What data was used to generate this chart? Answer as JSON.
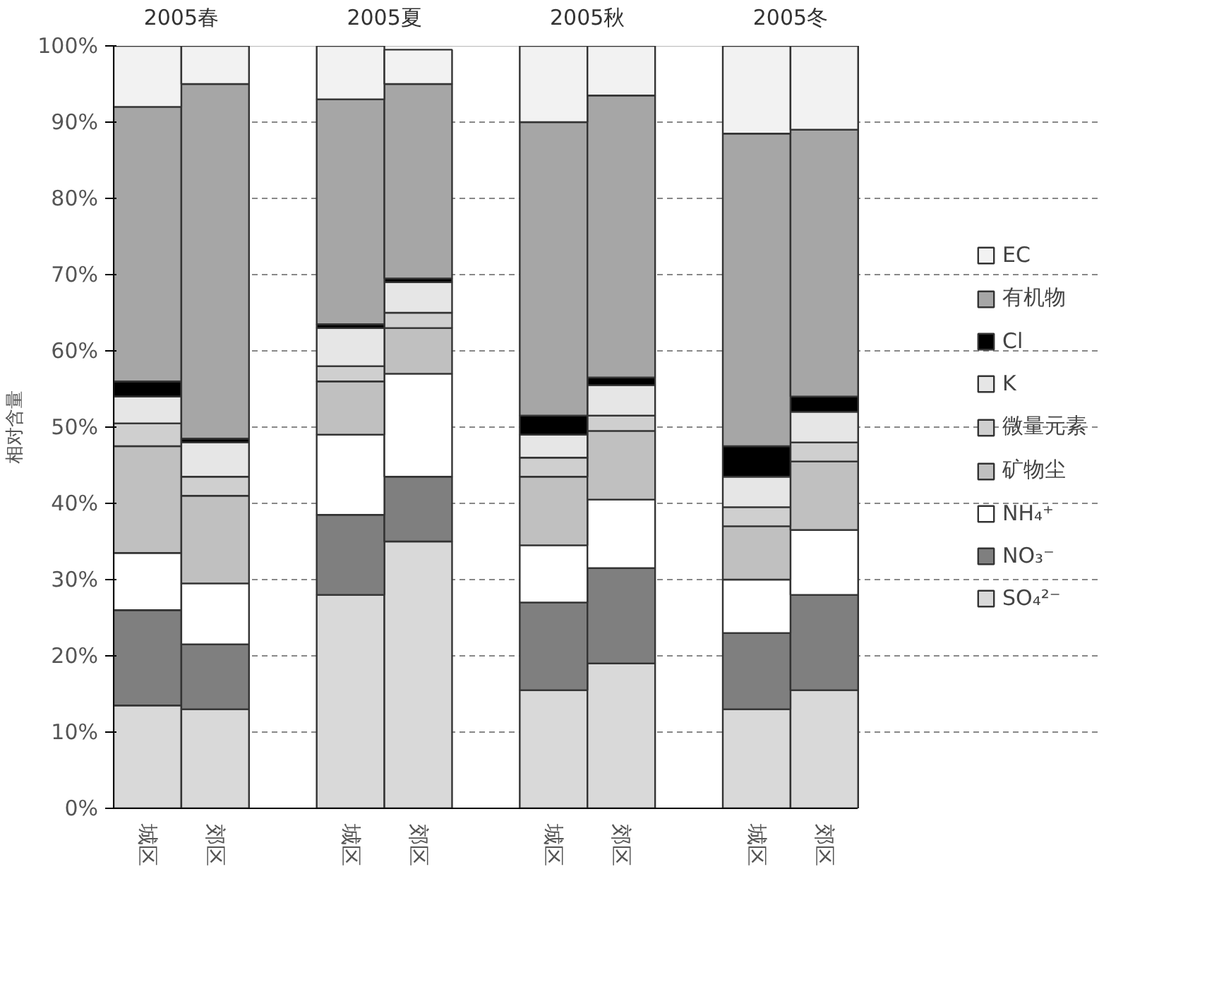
{
  "chart_data": {
    "type": "bar",
    "stacked": true,
    "ylabel": "相对含量",
    "categories": [
      "城区",
      "郊区",
      "城区",
      "郊区",
      "城区",
      "郊区",
      "城区",
      "郊区"
    ],
    "annotations": [
      "2005春",
      "2005夏",
      "2005秋",
      "2005冬"
    ],
    "ylim": [
      0,
      100
    ],
    "yticks": [
      {
        "value": 0,
        "label": "0%"
      },
      {
        "value": 10,
        "label": "10%"
      },
      {
        "value": 20,
        "label": "20%"
      },
      {
        "value": 30,
        "label": "30%"
      },
      {
        "value": 40,
        "label": "40%"
      },
      {
        "value": 50,
        "label": "50%"
      },
      {
        "value": 60,
        "label": "60%"
      },
      {
        "value": 70,
        "label": "70%"
      },
      {
        "value": 80,
        "label": "80%"
      },
      {
        "value": 90,
        "label": "90%"
      },
      {
        "value": 100,
        "label": "100%"
      }
    ],
    "grid": "y",
    "legend": "right",
    "series": [
      {
        "name": "SO₄²⁻",
        "color": "#d9d9d9",
        "values": [
          13.5,
          13,
          28,
          35,
          15.5,
          19,
          13,
          15.5
        ]
      },
      {
        "name": "NO₃⁻",
        "color": "#7f7f7f",
        "values": [
          12.5,
          8.5,
          10.5,
          8.5,
          11.5,
          12.5,
          10,
          12.5
        ]
      },
      {
        "name": "NH₄⁺",
        "color": "#ffffff",
        "values": [
          7.5,
          8,
          10.5,
          13.5,
          7.5,
          9,
          7,
          8.5
        ]
      },
      {
        "name": "矿物尘",
        "color": "#c0c0c0",
        "values": [
          14,
          11.5,
          7,
          6,
          9,
          9,
          7,
          9
        ]
      },
      {
        "name": "微量元素",
        "color": "#cfcfcf",
        "values": [
          3,
          2.5,
          2,
          2,
          2.5,
          2,
          2.5,
          2.5
        ]
      },
      {
        "name": "K",
        "color": "#e6e6e6",
        "values": [
          3.5,
          4.5,
          5,
          4,
          3,
          4,
          4,
          4
        ]
      },
      {
        "name": "Cl",
        "color": "#000000",
        "values": [
          2,
          0.5,
          0.5,
          0.5,
          2.5,
          1,
          4,
          2
        ]
      },
      {
        "name": "有机物",
        "color": "#a6a6a6",
        "values": [
          36,
          46.5,
          29.5,
          25.5,
          38.5,
          37,
          41,
          35
        ]
      },
      {
        "name": "EC",
        "color": "#f2f2f2",
        "values": [
          8,
          5,
          7,
          4.5,
          10,
          6.5,
          11.5,
          11
        ]
      }
    ]
  }
}
